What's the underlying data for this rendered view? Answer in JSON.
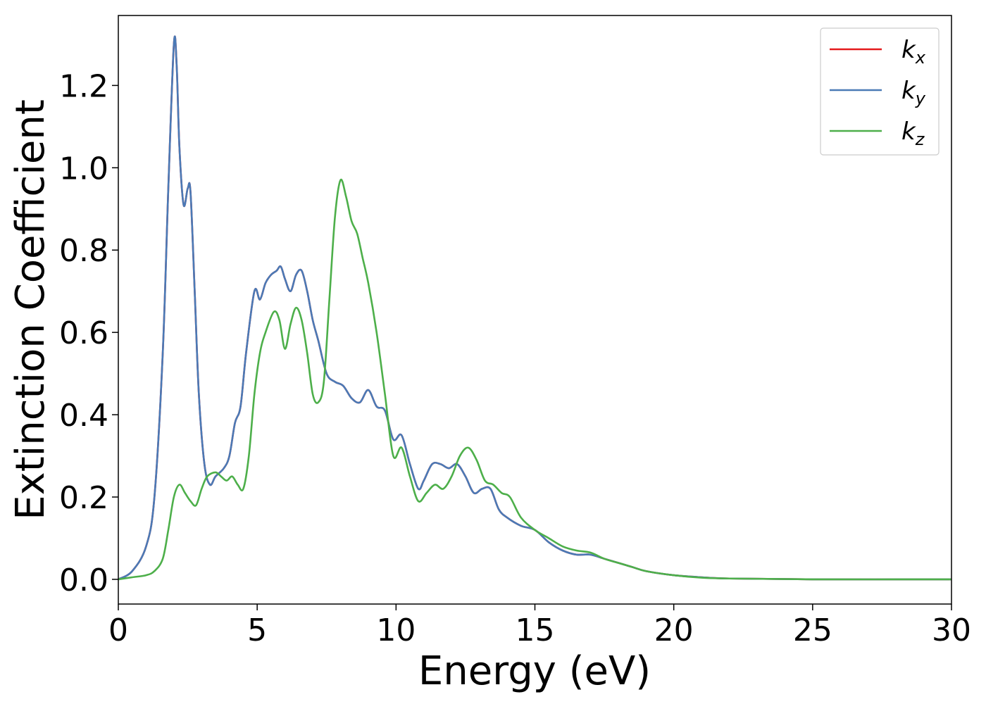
{
  "chart_data": {
    "type": "line",
    "xlabel": "Energy (eV)",
    "ylabel": "Extinction Coefficient",
    "xlim": [
      0,
      30
    ],
    "ylim": [
      -0.06,
      1.37
    ],
    "x_ticks": [
      "0",
      "5",
      "10",
      "15",
      "20",
      "25",
      "30"
    ],
    "x_tick_values": [
      0,
      5,
      10,
      15,
      20,
      25,
      30
    ],
    "y_ticks": [
      "0.0",
      "0.2",
      "0.4",
      "0.6",
      "0.8",
      "1.0",
      "1.2"
    ],
    "y_tick_values": [
      0.0,
      0.2,
      0.4,
      0.6,
      0.8,
      1.0,
      1.2
    ],
    "grid": false,
    "legend_position": "top-right",
    "series": [
      {
        "name": "k",
        "subscript": "x",
        "color": "#e41a1c",
        "x": [
          0,
          0.5,
          1.0,
          1.3,
          1.6,
          1.8,
          2.0,
          2.1,
          2.2,
          2.35,
          2.5,
          2.6,
          2.75,
          2.9,
          3.1,
          3.3,
          3.5,
          3.8,
          4.0,
          4.2,
          4.4,
          4.6,
          4.9,
          5.1,
          5.3,
          5.5,
          5.7,
          5.85,
          6.0,
          6.2,
          6.4,
          6.6,
          6.8,
          7.0,
          7.2,
          7.5,
          7.8,
          8.1,
          8.4,
          8.7,
          9.0,
          9.3,
          9.6,
          9.9,
          10.2,
          10.5,
          10.8,
          11.0,
          11.3,
          11.6,
          11.9,
          12.2,
          12.5,
          12.8,
          13.1,
          13.4,
          13.7,
          14.0,
          14.5,
          15.0,
          15.5,
          16.0,
          16.5,
          17.0,
          17.5,
          18.0,
          18.5,
          19.0,
          20.0,
          21.0,
          22.0,
          25.0,
          30.0
        ],
        "y": [
          0.0,
          0.02,
          0.08,
          0.2,
          0.55,
          0.95,
          1.3,
          1.25,
          1.05,
          0.91,
          0.95,
          0.94,
          0.7,
          0.45,
          0.28,
          0.23,
          0.25,
          0.27,
          0.3,
          0.38,
          0.42,
          0.55,
          0.7,
          0.68,
          0.72,
          0.74,
          0.75,
          0.76,
          0.73,
          0.7,
          0.74,
          0.75,
          0.7,
          0.63,
          0.58,
          0.5,
          0.48,
          0.47,
          0.44,
          0.43,
          0.46,
          0.42,
          0.41,
          0.34,
          0.35,
          0.28,
          0.22,
          0.24,
          0.28,
          0.28,
          0.27,
          0.28,
          0.25,
          0.21,
          0.22,
          0.22,
          0.17,
          0.15,
          0.13,
          0.12,
          0.09,
          0.07,
          0.06,
          0.06,
          0.05,
          0.04,
          0.03,
          0.02,
          0.01,
          0.005,
          0.002,
          0.0,
          0.0
        ]
      },
      {
        "name": "k",
        "subscript": "y",
        "color": "#4a7ab6",
        "x": [
          0,
          0.5,
          1.0,
          1.3,
          1.6,
          1.8,
          2.0,
          2.1,
          2.2,
          2.35,
          2.5,
          2.6,
          2.75,
          2.9,
          3.1,
          3.3,
          3.5,
          3.8,
          4.0,
          4.2,
          4.4,
          4.6,
          4.9,
          5.1,
          5.3,
          5.5,
          5.7,
          5.85,
          6.0,
          6.2,
          6.4,
          6.6,
          6.8,
          7.0,
          7.2,
          7.5,
          7.8,
          8.1,
          8.4,
          8.7,
          9.0,
          9.3,
          9.6,
          9.9,
          10.2,
          10.5,
          10.8,
          11.0,
          11.3,
          11.6,
          11.9,
          12.2,
          12.5,
          12.8,
          13.1,
          13.4,
          13.7,
          14.0,
          14.5,
          15.0,
          15.5,
          16.0,
          16.5,
          17.0,
          17.5,
          18.0,
          18.5,
          19.0,
          20.0,
          21.0,
          22.0,
          25.0,
          30.0
        ],
        "y": [
          0.0,
          0.02,
          0.08,
          0.2,
          0.55,
          0.95,
          1.3,
          1.25,
          1.05,
          0.91,
          0.95,
          0.94,
          0.7,
          0.45,
          0.28,
          0.23,
          0.25,
          0.27,
          0.3,
          0.38,
          0.42,
          0.55,
          0.7,
          0.68,
          0.72,
          0.74,
          0.75,
          0.76,
          0.73,
          0.7,
          0.74,
          0.75,
          0.7,
          0.63,
          0.58,
          0.5,
          0.48,
          0.47,
          0.44,
          0.43,
          0.46,
          0.42,
          0.41,
          0.34,
          0.35,
          0.28,
          0.22,
          0.24,
          0.28,
          0.28,
          0.27,
          0.28,
          0.25,
          0.21,
          0.22,
          0.22,
          0.17,
          0.15,
          0.13,
          0.12,
          0.09,
          0.07,
          0.06,
          0.06,
          0.05,
          0.04,
          0.03,
          0.02,
          0.01,
          0.005,
          0.002,
          0.0,
          0.0
        ]
      },
      {
        "name": "k",
        "subscript": "z",
        "color": "#4daf4a",
        "x": [
          0,
          0.5,
          1.0,
          1.3,
          1.6,
          1.8,
          2.0,
          2.2,
          2.4,
          2.6,
          2.8,
          3.0,
          3.2,
          3.5,
          3.7,
          3.9,
          4.1,
          4.3,
          4.5,
          4.7,
          4.9,
          5.1,
          5.3,
          5.6,
          5.8,
          6.0,
          6.2,
          6.4,
          6.6,
          6.8,
          7.0,
          7.2,
          7.4,
          7.6,
          7.8,
          8.0,
          8.2,
          8.4,
          8.6,
          8.8,
          9.0,
          9.3,
          9.6,
          9.9,
          10.2,
          10.5,
          10.8,
          11.1,
          11.4,
          11.7,
          12.0,
          12.3,
          12.6,
          12.9,
          13.2,
          13.5,
          13.8,
          14.1,
          14.5,
          15.0,
          15.5,
          16.0,
          16.5,
          17.0,
          17.5,
          18.0,
          18.5,
          19.0,
          20.0,
          21.0,
          22.0,
          25.0,
          30.0
        ],
        "y": [
          0.0,
          0.005,
          0.01,
          0.02,
          0.05,
          0.12,
          0.2,
          0.23,
          0.21,
          0.19,
          0.18,
          0.22,
          0.25,
          0.26,
          0.25,
          0.24,
          0.25,
          0.23,
          0.22,
          0.3,
          0.45,
          0.55,
          0.6,
          0.65,
          0.63,
          0.56,
          0.62,
          0.66,
          0.63,
          0.55,
          0.45,
          0.43,
          0.48,
          0.68,
          0.88,
          0.97,
          0.93,
          0.87,
          0.84,
          0.78,
          0.72,
          0.6,
          0.45,
          0.3,
          0.32,
          0.25,
          0.19,
          0.21,
          0.23,
          0.22,
          0.25,
          0.3,
          0.32,
          0.29,
          0.24,
          0.23,
          0.21,
          0.2,
          0.15,
          0.12,
          0.1,
          0.08,
          0.07,
          0.065,
          0.05,
          0.04,
          0.03,
          0.02,
          0.01,
          0.004,
          0.002,
          0.0,
          0.0
        ]
      }
    ]
  }
}
